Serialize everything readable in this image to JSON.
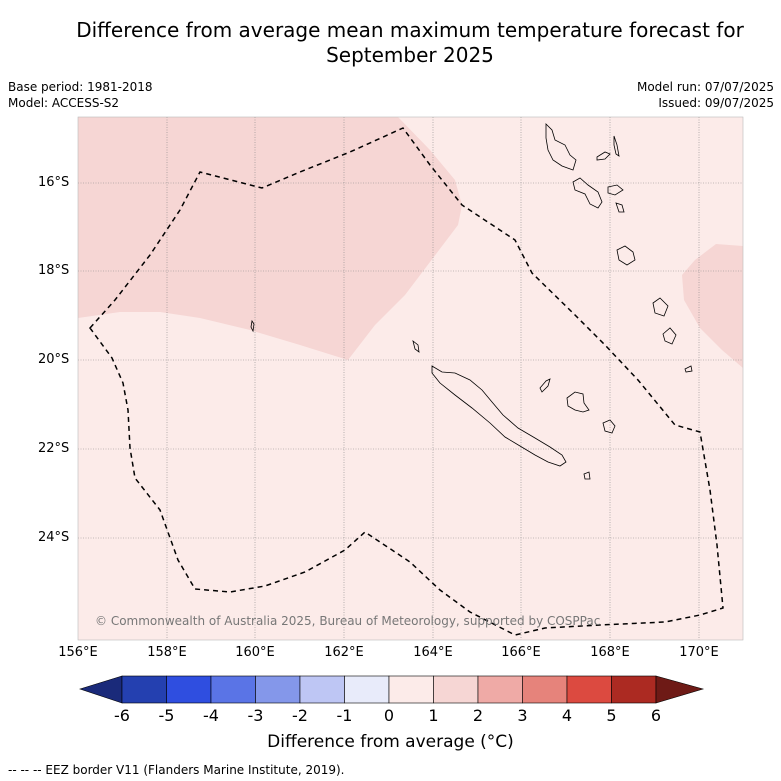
{
  "title_line1": "Difference from average mean maximum temperature forecast for",
  "title_line2": "September 2025",
  "base_period": "Base period: 1981-2018",
  "model": "Model: ACCESS-S2",
  "model_run": "Model run: 07/07/2025",
  "issued": "Issued: 09/07/2025",
  "map": {
    "lat_labels": [
      "16°S",
      "18°S",
      "20°S",
      "22°S",
      "24°S"
    ],
    "lon_labels": [
      "156°E",
      "158°E",
      "160°E",
      "162°E",
      "164°E",
      "166°E",
      "168°E",
      "170°E"
    ],
    "copyright": "© Commonwealth of Australia 2025, Bureau of Meteorology, supported by COSPPac",
    "colors": {
      "anomaly_0_1": "#fcebe9",
      "anomaly_1_2": "#f6d6d4",
      "eez_border": "#000000"
    }
  },
  "colorbar": {
    "ticks": [
      "-6",
      "-5",
      "-4",
      "-3",
      "-2",
      "-1",
      "0",
      "1",
      "2",
      "3",
      "4",
      "5",
      "6"
    ],
    "colors": [
      "#1a2a7a",
      "#2440b0",
      "#2f4ee0",
      "#5a74e6",
      "#8497ea",
      "#bec6f4",
      "#e8ebfa",
      "#fcebe9",
      "#f6d6d4",
      "#efaaa6",
      "#e6837b",
      "#dc4a40",
      "#ac2a22",
      "#6e1a16"
    ],
    "label": "Difference from average (°C)"
  },
  "legend_note": "--  --  -- EEZ border V11 (Flanders Marine Institute, 2019)."
}
